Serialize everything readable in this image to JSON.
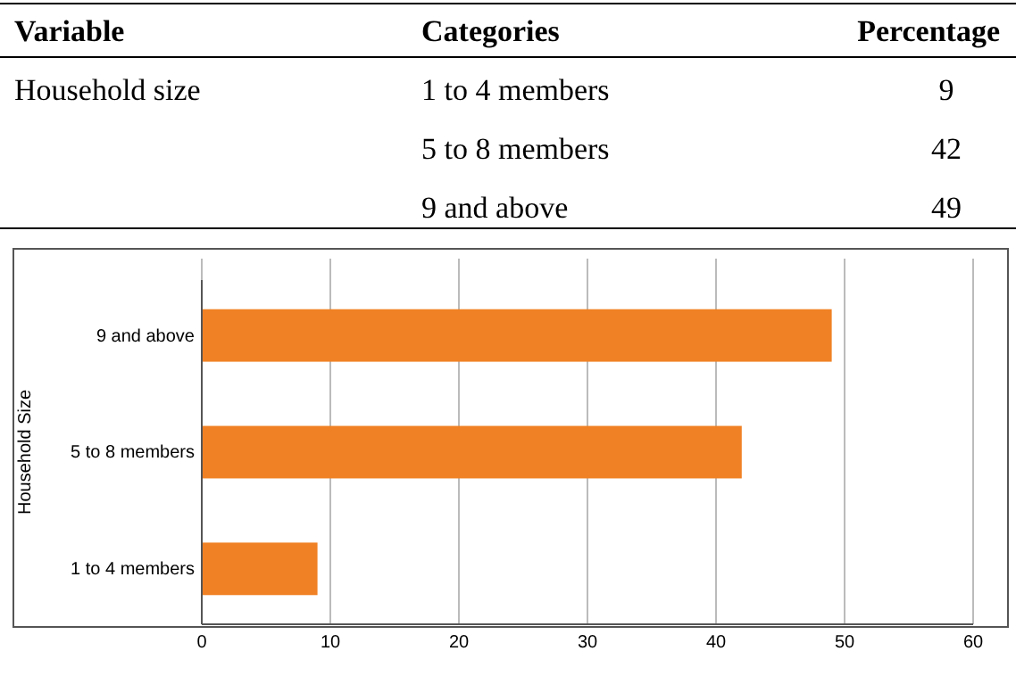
{
  "chart_data": [
    {
      "type": "other",
      "annotations": [
        "Variable",
        "Categories",
        "Percentage",
        "Household size",
        "1 to 4 members",
        "9",
        "5 to 8 members",
        "42",
        "9 and above",
        "49"
      ]
    },
    {
      "type": "bar",
      "orientation": "horizontal",
      "ylabel": "Household Size",
      "categories": [
        "9 and above",
        "5 to 8 members",
        "1 to 4 members"
      ],
      "values": [
        49,
        42,
        9
      ],
      "color": "#f08124",
      "xlim": [
        0,
        60
      ],
      "xticks": [
        0,
        10,
        20,
        30,
        40,
        50,
        60
      ],
      "grid": "x"
    }
  ]
}
